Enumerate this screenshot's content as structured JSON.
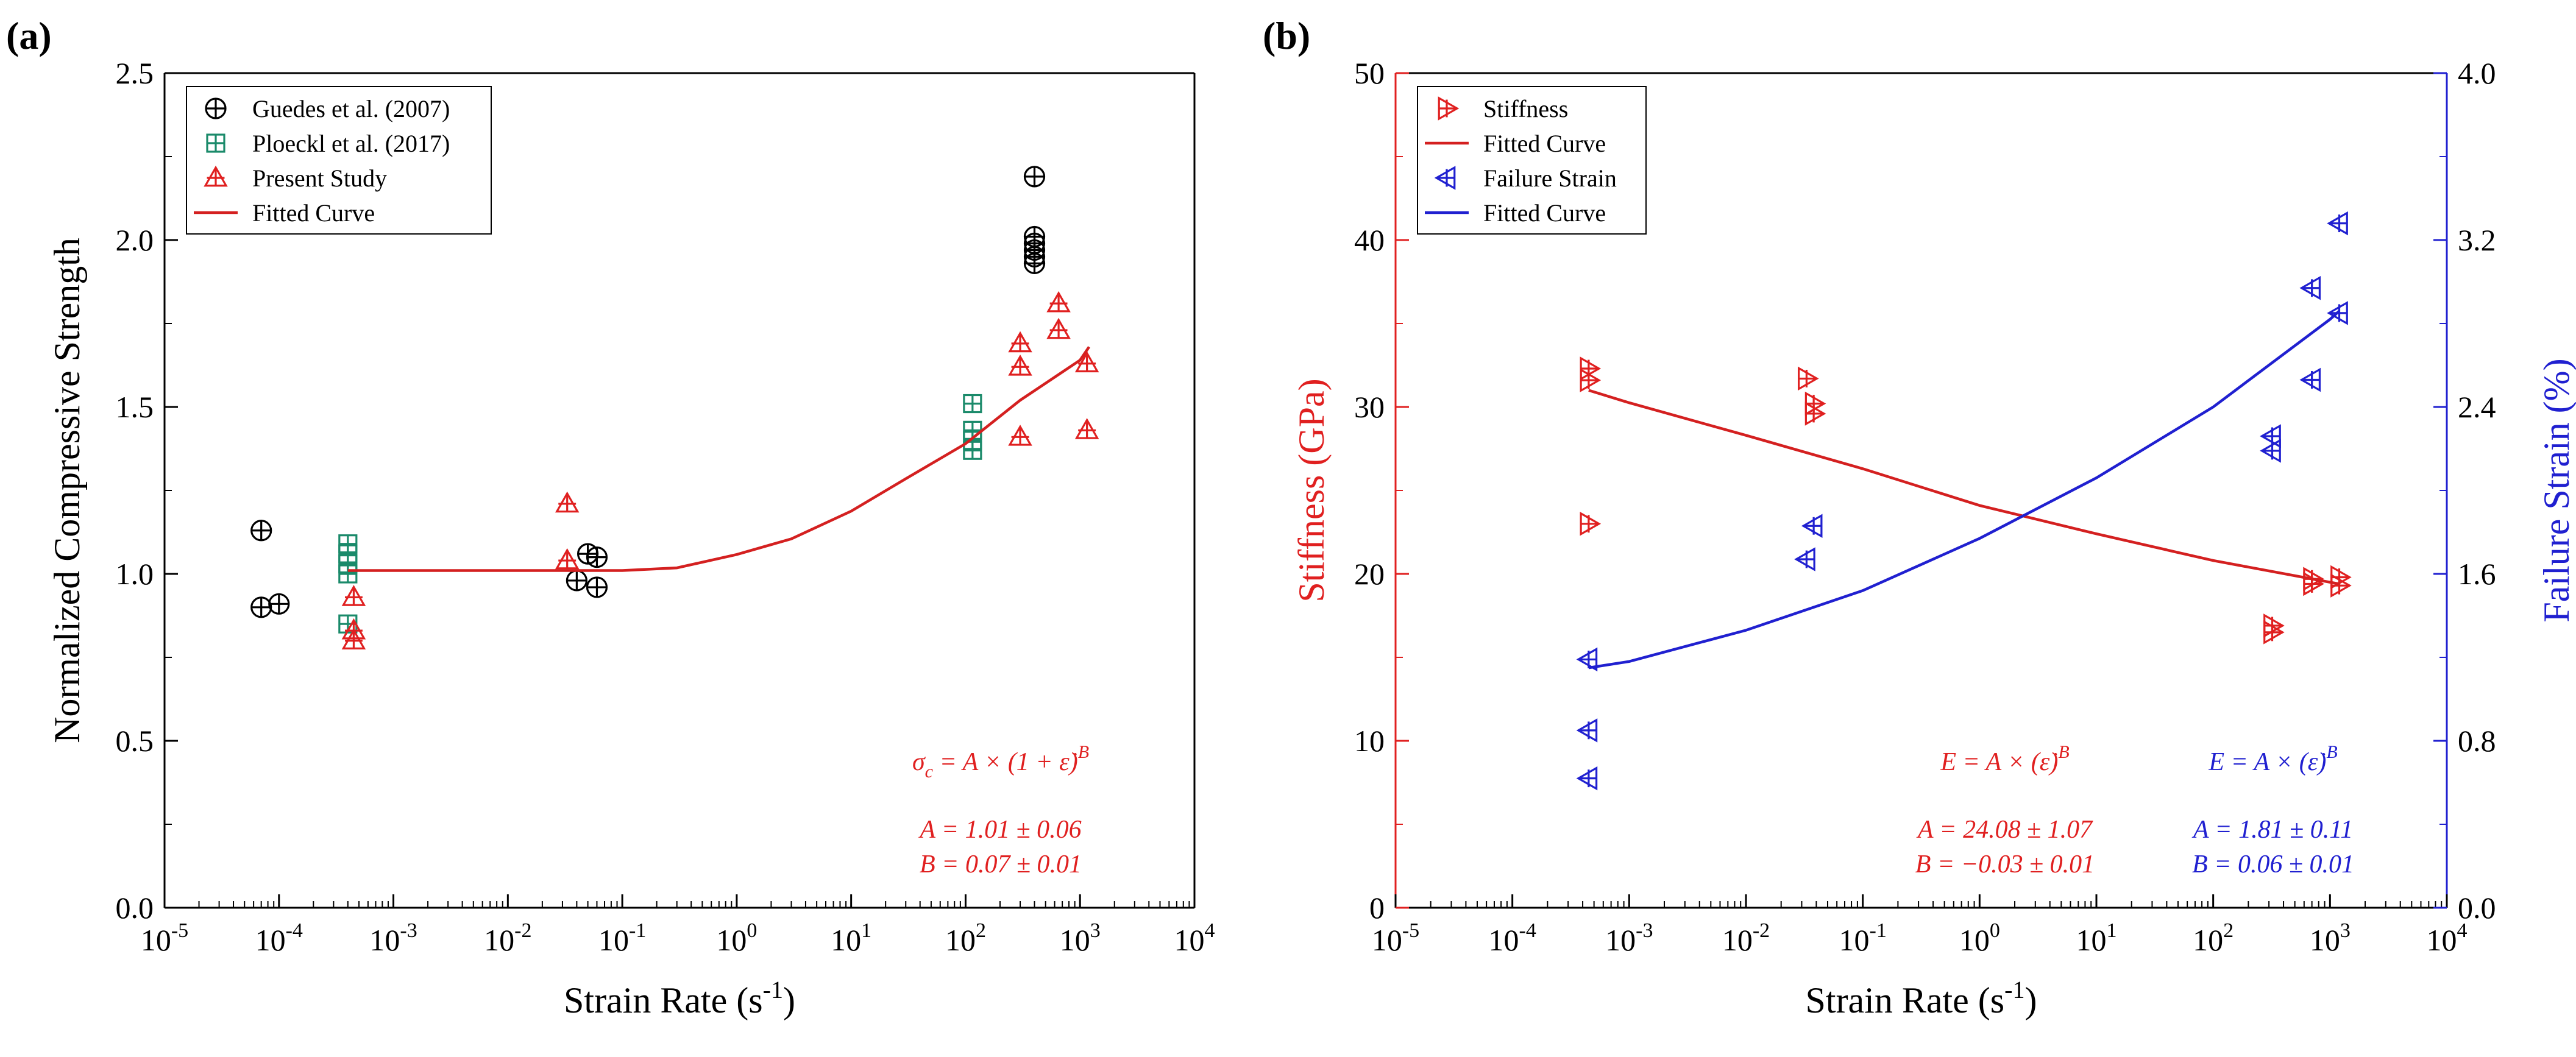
{
  "chart_data": [
    {
      "panel": "(a)",
      "type": "scatter",
      "xscale": "log",
      "xlim": [
        1e-05,
        10000.0
      ],
      "ylim": [
        0,
        2.5
      ],
      "xlabel": "Strain Rate (s-1)",
      "ylabel": "Normalized Compressive Strength",
      "x_ticks": [
        -5,
        -4,
        -3,
        -2,
        -1,
        0,
        1,
        2,
        3,
        4
      ],
      "y_ticks": [
        "0.0",
        "0.5",
        "1.0",
        "1.5",
        "2.0",
        "2.5"
      ],
      "legend_position": "top-left",
      "series": [
        {
          "name": "Guedes et al. (2007)",
          "marker": "circle-plus",
          "color": "#000000",
          "points": [
            [
              7e-05,
              1.13
            ],
            [
              7e-05,
              0.9
            ],
            [
              0.0001,
              0.91
            ],
            [
              0.04,
              0.98
            ],
            [
              0.05,
              1.06
            ],
            [
              0.06,
              0.96
            ],
            [
              0.06,
              1.05
            ],
            [
              400,
              2.19
            ],
            [
              400,
              2.01
            ],
            [
              400,
              1.99
            ],
            [
              400,
              1.97
            ],
            [
              400,
              1.95
            ],
            [
              400,
              1.93
            ]
          ]
        },
        {
          "name": "Ploeckl et al. (2017)",
          "marker": "square-plus",
          "color": "#1a8a6a",
          "points": [
            [
              0.0004,
              1.09
            ],
            [
              0.0004,
              1.06
            ],
            [
              0.0004,
              1.03
            ],
            [
              0.0004,
              1.0
            ],
            [
              0.0004,
              0.85
            ],
            [
              115,
              1.51
            ],
            [
              115,
              1.43
            ],
            [
              115,
              1.4
            ],
            [
              115,
              1.37
            ]
          ]
        },
        {
          "name": "Present Study",
          "marker": "triangle-plus",
          "color": "#e02020",
          "points": [
            [
              0.00045,
              0.93
            ],
            [
              0.00045,
              0.83
            ],
            [
              0.00045,
              0.8
            ],
            [
              0.033,
              1.21
            ],
            [
              0.033,
              1.04
            ],
            [
              300,
              1.69
            ],
            [
              300,
              1.62
            ],
            [
              300,
              1.41
            ],
            [
              650,
              1.81
            ],
            [
              650,
              1.73
            ],
            [
              1150,
              1.63
            ],
            [
              1150,
              1.43
            ]
          ]
        },
        {
          "name": "Fitted Curve",
          "type": "line",
          "color": "#d42020",
          "points": [
            [
              0.0004,
              1.01
            ],
            [
              0.1,
              1.01
            ],
            [
              0.3,
              1.018
            ],
            [
              1,
              1.058
            ],
            [
              3,
              1.105
            ],
            [
              10,
              1.188
            ],
            [
              30,
              1.285
            ],
            [
              100,
              1.39
            ],
            [
              300,
              1.52
            ],
            [
              1000,
              1.64
            ],
            [
              1200,
              1.68
            ]
          ]
        }
      ],
      "annotations": {
        "equation": "σc = A × (1 + ε̇)^B",
        "eq_lhs": "σ",
        "eq_sub": "c",
        "eq_mid": " = A × (1 + ",
        "eq_eps": "ε̇",
        "eq_close": ")",
        "eq_exp": "B",
        "param_a": "A = 1.01 ± 0.06",
        "param_b": "B = 0.07 ± 0.01"
      }
    },
    {
      "panel": "(b)",
      "type": "scatter",
      "xscale": "log",
      "xlim": [
        1e-05,
        10000.0
      ],
      "ylim": [
        0,
        50
      ],
      "y2lim": [
        0,
        4.0
      ],
      "xlabel": "Strain Rate (s-1)",
      "ylabel": "Stiffness (GPa)",
      "y2label": "Failure Strain (%)",
      "x_ticks": [
        -5,
        -4,
        -3,
        -2,
        -1,
        0,
        1,
        2,
        3,
        4
      ],
      "y_ticks": [
        "0",
        "10",
        "20",
        "30",
        "40",
        "50"
      ],
      "y2_ticks": [
        "0.0",
        "0.8",
        "1.6",
        "2.4",
        "3.2",
        "4.0"
      ],
      "legend_position": "top-left",
      "series": [
        {
          "name": "Stiffness",
          "axis": "left",
          "marker": "triangle-right-plus",
          "color": "#e02020",
          "points": [
            [
              0.00045,
              32.3
            ],
            [
              0.00045,
              31.6
            ],
            [
              0.00045,
              23.0
            ],
            [
              0.033,
              31.7
            ],
            [
              0.038,
              30.2
            ],
            [
              0.038,
              29.6
            ],
            [
              320,
              16.9
            ],
            [
              320,
              16.5
            ],
            [
              700,
              19.7
            ],
            [
              700,
              19.4
            ],
            [
              1200,
              19.8
            ],
            [
              1200,
              19.3
            ]
          ]
        },
        {
          "name": "Fitted Curve",
          "axis": "left",
          "type": "line",
          "color": "#d42020",
          "points": [
            [
              0.00045,
              31.0
            ],
            [
              0.001,
              30.25
            ],
            [
              0.01,
              28.3
            ],
            [
              0.1,
              26.3
            ],
            [
              1,
              24.1
            ],
            [
              10,
              22.4
            ],
            [
              100,
              20.8
            ],
            [
              1000,
              19.5
            ],
            [
              1200,
              19.4
            ]
          ]
        },
        {
          "name": "Failure Strain",
          "axis": "right",
          "marker": "triangle-left-plus",
          "color": "#2020d0",
          "points": [
            [
              0.00045,
              1.19
            ],
            [
              0.00045,
              0.85
            ],
            [
              0.00045,
              0.62
            ],
            [
              0.033,
              1.67
            ],
            [
              0.038,
              1.83
            ],
            [
              320,
              2.26
            ],
            [
              320,
              2.19
            ],
            [
              700,
              2.97
            ],
            [
              700,
              2.53
            ],
            [
              1200,
              3.28
            ],
            [
              1200,
              2.85
            ]
          ]
        },
        {
          "name": "Fitted Curve",
          "axis": "right",
          "type": "line",
          "color": "#2020d0",
          "points": [
            [
              0.00045,
              1.15
            ],
            [
              0.001,
              1.18
            ],
            [
              0.01,
              1.33
            ],
            [
              0.1,
              1.52
            ],
            [
              1,
              1.77
            ],
            [
              10,
              2.06
            ],
            [
              100,
              2.4
            ],
            [
              1000,
              2.82
            ],
            [
              1200,
              2.86
            ]
          ]
        }
      ],
      "annotations": {
        "eq_left": "E = A × (ε̇)^B",
        "eq_right": "E = A × (ε̇)^B",
        "eq_lhs": "E = A × (",
        "eq_eps": "ε̇",
        "eq_close": ")",
        "eq_exp": "B",
        "left_param_a": "A = 24.08 ± 1.07",
        "left_param_b": "B = −0.03 ± 0.01",
        "right_param_a": "A = 1.81 ± 0.11",
        "right_param_b": "B = 0.06 ± 0.01"
      }
    }
  ],
  "colors": {
    "red": "#e02020",
    "fit_red": "#d42020",
    "blue": "#2020d0",
    "green": "#1a8a6a",
    "black": "#000000"
  },
  "axis_text": {
    "strain_rate_main": "Strain Rate (s",
    "strain_rate_sup": "-1",
    "strain_rate_close": ")",
    "tick_base": "10"
  }
}
